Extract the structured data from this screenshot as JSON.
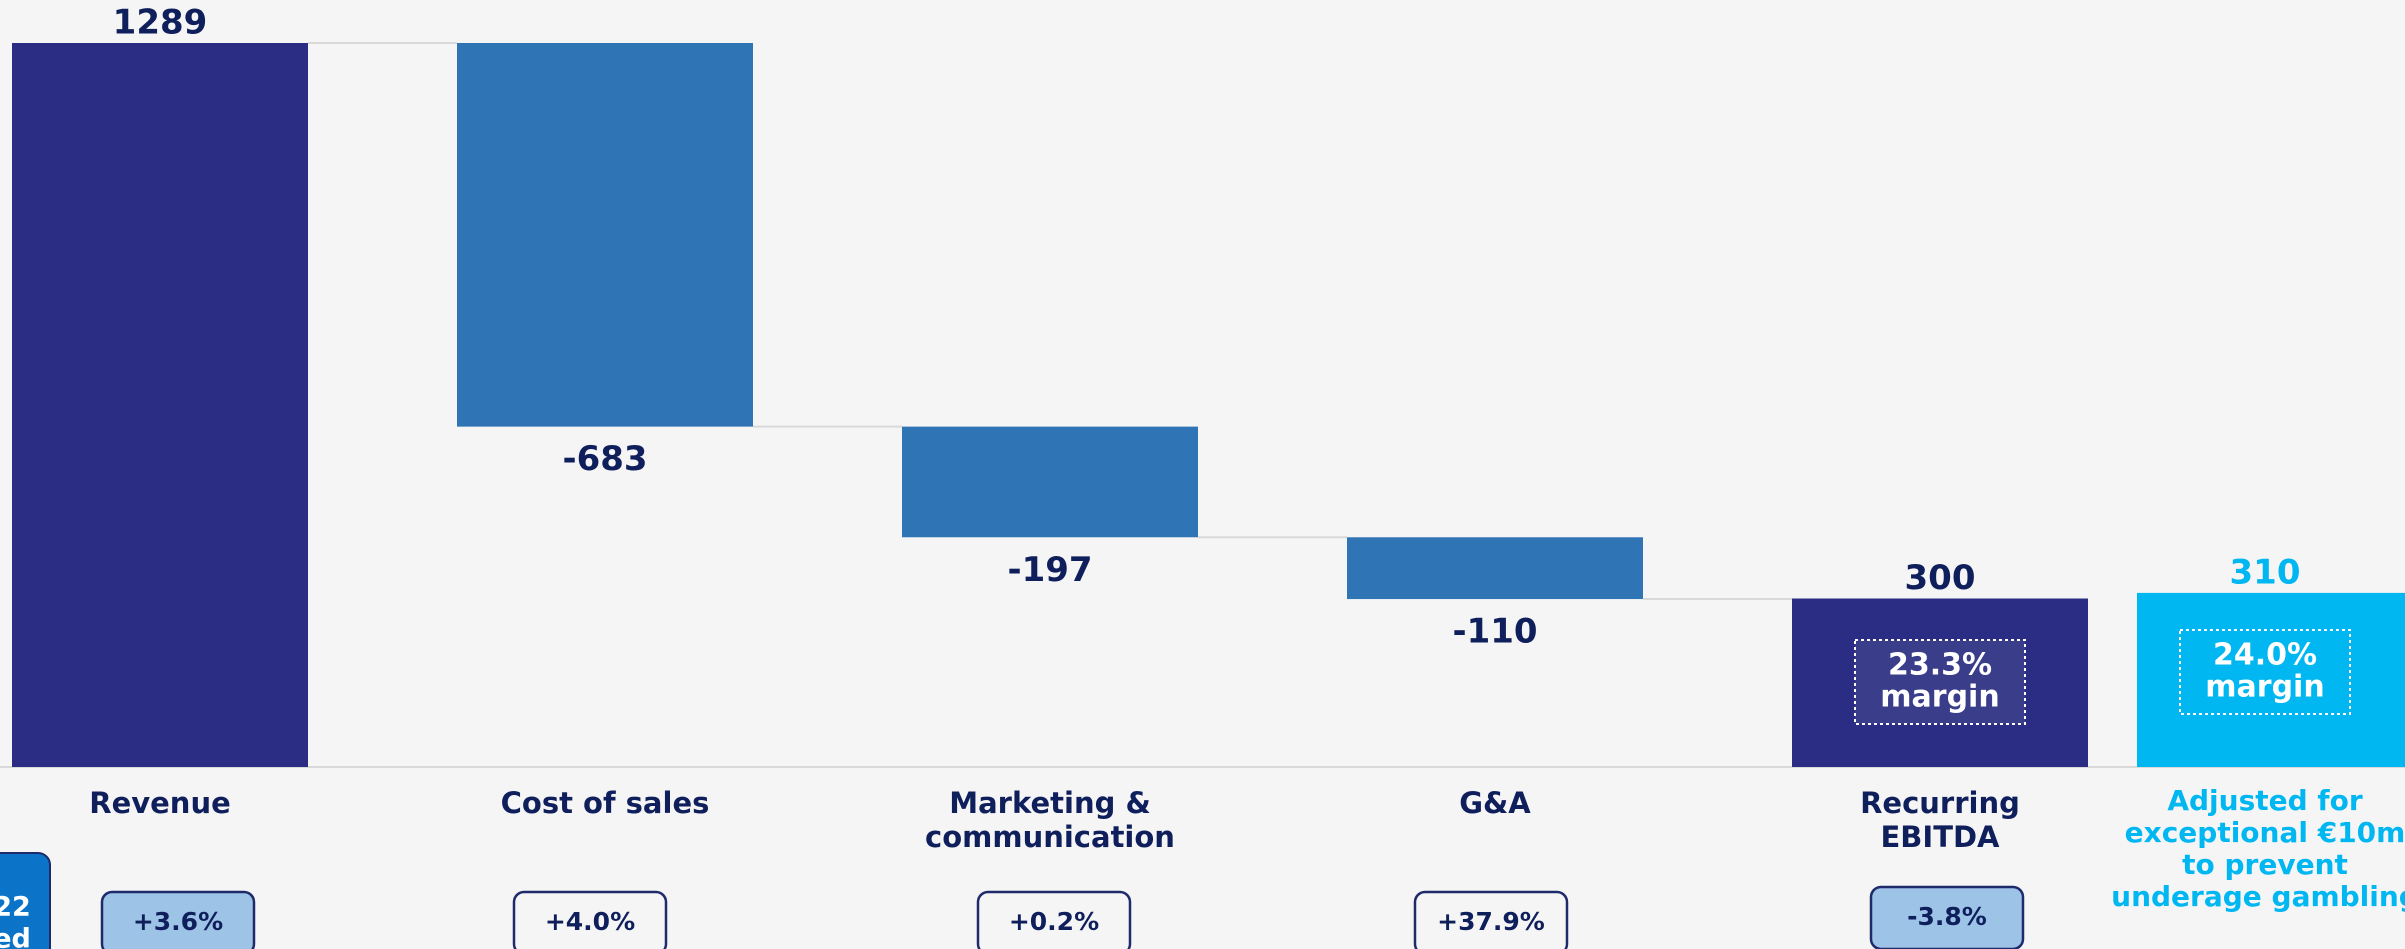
{
  "chart_data": {
    "type": "waterfall",
    "categories": [
      [
        "Revenue"
      ],
      [
        "Cost of sales"
      ],
      [
        "Marketing &",
        "communication"
      ],
      [
        "G&A"
      ],
      [
        "Recurring",
        "EBITDA"
      ],
      [
        "Adjusted for",
        "exceptional €10m",
        "to prevent",
        "underage gambling"
      ]
    ],
    "values": [
      1289,
      -683,
      -197,
      -110,
      300,
      310
    ],
    "bar_kinds": [
      "total",
      "delta",
      "delta",
      "delta",
      "total",
      "total"
    ],
    "colors": [
      "#2b2d84",
      "#2f75b5",
      "#2f75b5",
      "#2f75b5",
      "#2b2d84",
      "#00b7f1"
    ],
    "label_colors": [
      "#0f1f5c",
      "#0f1f5c",
      "#0f1f5c",
      "#0f1f5c",
      "#0f1f5c",
      "#00b7f1"
    ],
    "margin_labels": [
      null,
      null,
      null,
      null,
      [
        "23.3%",
        "margin"
      ],
      [
        "24.0%",
        "margin"
      ]
    ],
    "changes": [
      "+3.6%",
      "+4.0%",
      "+0.2%",
      "+37.9%",
      "-3.8%",
      null
    ],
    "change_highlight": [
      true,
      false,
      false,
      false,
      true,
      false
    ],
    "corner_note": [
      "22",
      "ed"
    ]
  }
}
